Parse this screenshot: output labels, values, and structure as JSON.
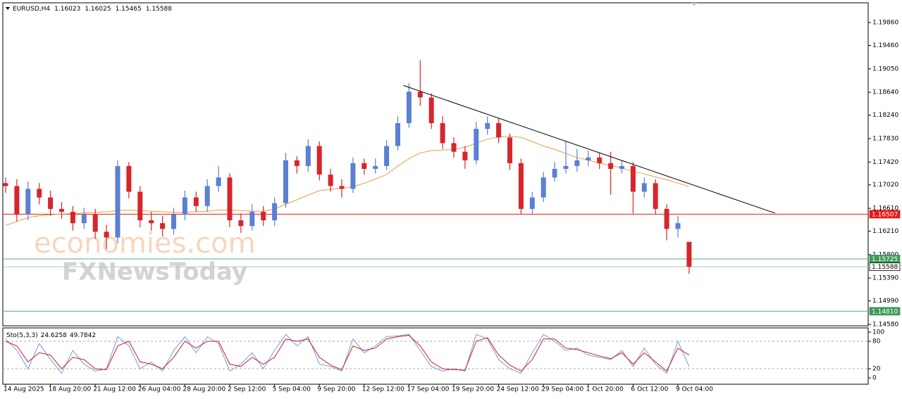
{
  "chart_data": [
    {
      "type": "candlestick",
      "symbol": "EURUSD,H4",
      "up_color": "#5b7fd4",
      "down_color": "#d6262b",
      "categories": [
        "14 Aug 2025",
        null,
        null,
        null,
        "18 Aug 20:00",
        null,
        null,
        null,
        "21 Aug 12:00",
        null,
        null,
        null,
        "26 Aug 04:00",
        null,
        null,
        null,
        "28 Aug 20:00",
        null,
        null,
        null,
        "2 Sep 12:00",
        null,
        null,
        null,
        "5 Sep 04:00",
        null,
        null,
        null,
        "9 Sep 20:00",
        null,
        null,
        null,
        "12 Sep 12:00",
        null,
        null,
        null,
        "17 Sep 04:00",
        null,
        null,
        null,
        "19 Sep 20:00",
        null,
        null,
        null,
        "24 Sep 12:00",
        null,
        null,
        null,
        "29 Sep 04:00",
        null,
        null,
        null,
        "1 Oct 20:00",
        null,
        null,
        null,
        "6 Oct 12:00",
        null,
        null,
        null,
        "9 Oct 04:00",
        null
      ],
      "open": [
        1.1705,
        1.17,
        1.165,
        1.1695,
        1.168,
        1.166,
        1.1655,
        1.1635,
        1.165,
        1.162,
        1.161,
        1.1735,
        1.169,
        1.164,
        1.1635,
        1.1625,
        1.165,
        1.168,
        1.1665,
        1.17,
        1.1715,
        1.164,
        1.163,
        1.1655,
        1.164,
        1.167,
        1.1745,
        1.1735,
        1.177,
        1.172,
        1.17,
        1.1695,
        1.174,
        1.173,
        1.1735,
        1.177,
        1.181,
        1.1865,
        1.1855,
        1.181,
        1.1775,
        1.176,
        1.1745,
        1.18,
        1.181,
        1.1785,
        1.174,
        1.166,
        1.168,
        1.1715,
        1.173,
        1.1735,
        1.1745,
        1.175,
        1.174,
        1.173,
        1.1735,
        1.169,
        1.1705,
        1.166,
        1.1625,
        1.16023
      ],
      "high": [
        1.1715,
        1.1712,
        1.1708,
        1.1705,
        1.1692,
        1.1672,
        1.1665,
        1.1662,
        1.166,
        1.1632,
        1.1745,
        1.1742,
        1.17,
        1.1655,
        1.1648,
        1.1662,
        1.1692,
        1.169,
        1.1712,
        1.1735,
        1.1722,
        1.1652,
        1.1668,
        1.1665,
        1.168,
        1.1758,
        1.1752,
        1.1782,
        1.1778,
        1.173,
        1.1712,
        1.175,
        1.1748,
        1.1748,
        1.178,
        1.1822,
        1.188,
        1.192,
        1.1862,
        1.1822,
        1.1785,
        1.177,
        1.1812,
        1.1822,
        1.1818,
        1.1792,
        1.1748,
        1.169,
        1.1725,
        1.1742,
        1.1778,
        1.1765,
        1.1762,
        1.1758,
        1.176,
        1.1745,
        1.1742,
        1.1715,
        1.1712,
        1.1668,
        1.1648,
        1.16025
      ],
      "low": [
        1.1688,
        1.1638,
        1.164,
        1.1668,
        1.1648,
        1.1643,
        1.1622,
        1.1625,
        1.1608,
        1.159,
        1.16,
        1.1678,
        1.1628,
        1.1622,
        1.1612,
        1.1615,
        1.164,
        1.1655,
        1.1655,
        1.169,
        1.1628,
        1.1618,
        1.1622,
        1.163,
        1.163,
        1.1662,
        1.1722,
        1.1725,
        1.171,
        1.169,
        1.168,
        1.1688,
        1.172,
        1.1722,
        1.1728,
        1.1762,
        1.1802,
        1.184,
        1.18,
        1.1765,
        1.175,
        1.173,
        1.1738,
        1.179,
        1.1775,
        1.1728,
        1.165,
        1.1652,
        1.1672,
        1.1708,
        1.1722,
        1.1725,
        1.1735,
        1.173,
        1.1685,
        1.1722,
        1.1652,
        1.168,
        1.165,
        1.1605,
        1.161,
        1.15465
      ],
      "close": [
        1.17,
        1.165,
        1.1695,
        1.168,
        1.166,
        1.1655,
        1.1635,
        1.165,
        1.162,
        1.161,
        1.1735,
        1.169,
        1.164,
        1.1635,
        1.1625,
        1.165,
        1.168,
        1.1665,
        1.17,
        1.1715,
        1.164,
        1.163,
        1.1655,
        1.164,
        1.167,
        1.1745,
        1.1735,
        1.177,
        1.172,
        1.17,
        1.1695,
        1.174,
        1.173,
        1.1735,
        1.177,
        1.181,
        1.1865,
        1.1855,
        1.181,
        1.1775,
        1.176,
        1.1745,
        1.18,
        1.181,
        1.1785,
        1.174,
        1.166,
        1.168,
        1.1715,
        1.173,
        1.1735,
        1.1745,
        1.175,
        1.174,
        1.173,
        1.1735,
        1.169,
        1.1705,
        1.166,
        1.1625,
        1.1635,
        1.15588
      ],
      "moving_average": {
        "color": "#e8a040",
        "values": [
          1.1631,
          1.1638,
          1.1645,
          1.1648,
          1.165,
          1.1651,
          1.1652,
          1.1653,
          1.1654,
          1.1655,
          1.1657,
          1.1658,
          1.1657,
          1.1656,
          1.1655,
          1.1654,
          1.1654,
          1.1655,
          1.1656,
          1.1658,
          1.1658,
          1.1657,
          1.1656,
          1.1656,
          1.166,
          1.1668,
          1.1676,
          1.1684,
          1.1692,
          1.1694,
          1.1696,
          1.1699,
          1.1705,
          1.1712,
          1.172,
          1.1735,
          1.1748,
          1.1758,
          1.1762,
          1.1763,
          1.1764,
          1.1768,
          1.1775,
          1.1782,
          1.1786,
          1.1787,
          1.1785,
          1.1778,
          1.177,
          1.1764,
          1.1757,
          1.175,
          1.1745,
          1.174,
          1.1736,
          1.1731,
          1.1726,
          1.1721,
          1.1716,
          1.1711,
          1.1705,
          1.1699
        ]
      },
      "trendline": {
        "start": 1.1876,
        "end": 1.16525,
        "color": "#000000"
      },
      "levels": [
        {
          "value": 1.16507,
          "label": "1.16507",
          "color": "#e41b17",
          "badge": "#e41b17"
        },
        {
          "value": 1.15725,
          "label": "1.15725",
          "color": "#5aa86e",
          "badge": "#3f9a5a"
        },
        {
          "value": 1.15588,
          "label": "1.15588",
          "color": "#a8cdb2",
          "badge": "#ffffff"
        },
        {
          "value": 1.1481,
          "label": "1.14810",
          "color": "#5aa86e",
          "badge": "#3f9a5a"
        }
      ],
      "ylim": [
        1.14555,
        1.20205
      ],
      "yticks": [
        {
          "value": 1.1986,
          "label": "1.19860"
        },
        {
          "value": 1.1946,
          "label": "1.19460"
        },
        {
          "value": 1.1905,
          "label": "1.19050"
        },
        {
          "value": 1.1864,
          "label": "1.18640"
        },
        {
          "value": 1.1824,
          "label": "1.18240"
        },
        {
          "value": 1.1783,
          "label": "1.17830"
        },
        {
          "value": 1.1742,
          "label": "1.17420"
        },
        {
          "value": 1.1702,
          "label": "1.17020"
        },
        {
          "value": 1.1661,
          "label": "1.16610"
        },
        {
          "value": 1.1621,
          "label": "1.16210"
        },
        {
          "value": 1.158,
          "label": "1.15800"
        },
        {
          "value": 1.1539,
          "label": "1.15390"
        },
        {
          "value": 1.1499,
          "label": "1.14990"
        },
        {
          "value": 1.1458,
          "label": "1.14580"
        }
      ],
      "watermark": [
        "economies.com",
        "FXNewsToday"
      ]
    },
    {
      "type": "line",
      "title": "Sto(5,3,3)",
      "series": [
        {
          "color": "#7a98e0",
          "values": [
            85,
            60,
            20,
            75,
            40,
            10,
            60,
            30,
            15,
            20,
            90,
            70,
            20,
            35,
            15,
            60,
            90,
            55,
            90,
            75,
            15,
            30,
            55,
            20,
            60,
            95,
            70,
            90,
            30,
            25,
            15,
            85,
            55,
            70,
            90,
            92,
            95,
            60,
            25,
            15,
            20,
            15,
            95,
            85,
            40,
            20,
            10,
            55,
            95,
            80,
            60,
            65,
            50,
            45,
            40,
            60,
            25,
            65,
            30,
            10,
            80,
            24.6258
          ]
        },
        {
          "color": "#c8202a",
          "values": [
            80,
            70,
            35,
            55,
            50,
            20,
            45,
            40,
            20,
            18,
            70,
            80,
            35,
            30,
            20,
            45,
            80,
            65,
            80,
            80,
            30,
            25,
            45,
            30,
            45,
            85,
            80,
            85,
            45,
            28,
            18,
            70,
            60,
            65,
            85,
            90,
            93,
            70,
            35,
            20,
            18,
            17,
            80,
            88,
            50,
            28,
            15,
            40,
            85,
            85,
            65,
            62,
            55,
            48,
            42,
            55,
            30,
            55,
            35,
            15,
            65,
            49.7842
          ]
        }
      ],
      "ylim": [
        -13.8,
        109.2
      ],
      "yticks": [
        0,
        20,
        80,
        100
      ],
      "dashed_levels": [
        20,
        80
      ]
    }
  ]
}
